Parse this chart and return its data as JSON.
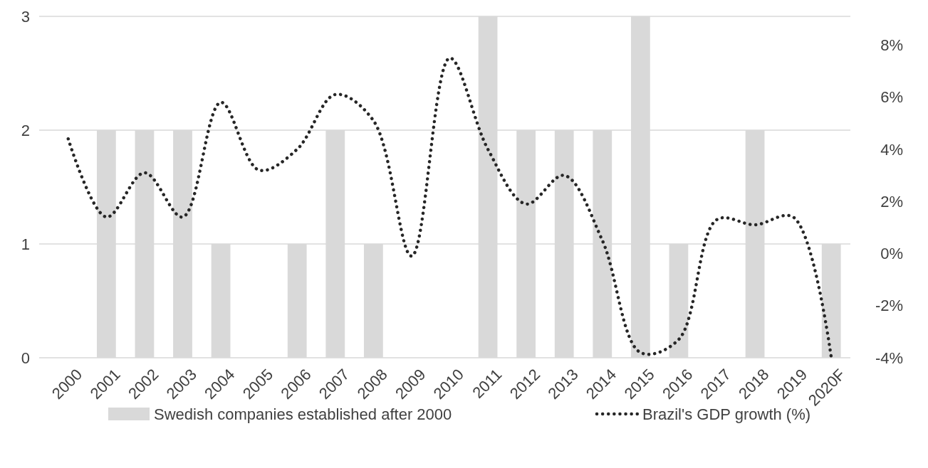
{
  "chart_data": {
    "type": "bar",
    "categories": [
      "2000",
      "2001",
      "2002",
      "2003",
      "2004",
      "2005",
      "2006",
      "2007",
      "2008",
      "2009",
      "2010",
      "2011",
      "2012",
      "2013",
      "2014",
      "2015",
      "2016",
      "2017",
      "2018",
      "2019",
      "2020F"
    ],
    "series": [
      {
        "name": "Swedish companies established after 2000",
        "color": "#d9d9d9",
        "values": [
          0,
          2,
          2,
          2,
          1,
          0,
          1,
          2,
          1,
          0,
          0,
          3,
          2,
          2,
          2,
          3,
          1,
          0,
          2,
          0,
          1
        ]
      },
      {
        "name": "Brazil's GDP growth (%)",
        "type": "line",
        "axis": "y2",
        "color": "#262626",
        "line_style": "dotted",
        "values": [
          4.4,
          1.4,
          3.1,
          1.4,
          5.8,
          3.2,
          4.0,
          6.1,
          5.1,
          -0.1,
          7.5,
          4.0,
          1.9,
          3.0,
          0.5,
          -3.8,
          -3.3,
          1.3,
          1.1,
          1.4,
          -4.0
        ]
      }
    ],
    "ylim": [
      0,
      3
    ],
    "yticks": [
      0,
      1,
      2,
      3
    ],
    "y2lim": [
      -4,
      9.1
    ],
    "y2ticks": [
      {
        "value": -4,
        "label": "-4%"
      },
      {
        "value": -2,
        "label": "-2%"
      },
      {
        "value": 0,
        "label": "0%"
      },
      {
        "value": 2,
        "label": "2%"
      },
      {
        "value": 4,
        "label": "4%"
      },
      {
        "value": 6,
        "label": "6%"
      },
      {
        "value": 8,
        "label": "8%"
      }
    ],
    "grid": "y",
    "legend": "bottom"
  }
}
